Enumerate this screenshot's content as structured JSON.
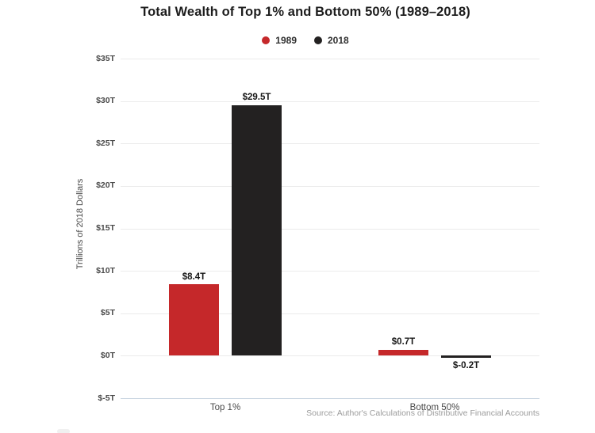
{
  "chart_data": {
    "type": "bar",
    "title": "Total Wealth of Top 1% and Bottom 50% (1989–2018)",
    "categories": [
      "Top 1%",
      "Bottom 50%"
    ],
    "series": [
      {
        "name": "1989",
        "color": "#c5282a",
        "values": [
          8.4,
          0.7
        ],
        "value_labels": [
          "$8.4T",
          "$0.7T"
        ]
      },
      {
        "name": "2018",
        "color": "#232121",
        "values": [
          29.5,
          -0.2
        ],
        "value_labels": [
          "$29.5T",
          "$-0.2T"
        ]
      }
    ],
    "xlabel": "",
    "ylabel": "Trillions of 2018 Dollars",
    "ylim": [
      -5,
      35
    ],
    "yticks": [
      {
        "value": 35,
        "label": "$35T"
      },
      {
        "value": 30,
        "label": "$30T"
      },
      {
        "value": 25,
        "label": "$25T"
      },
      {
        "value": 20,
        "label": "$20T"
      },
      {
        "value": 15,
        "label": "$15T"
      },
      {
        "value": 10,
        "label": "$10T"
      },
      {
        "value": 5,
        "label": "$5T"
      },
      {
        "value": 0,
        "label": "$0T"
      },
      {
        "value": -5,
        "label": "$-5T"
      }
    ],
    "grid": true,
    "legend_position": "top-center",
    "source": "Source: Author's Calculations of Distributive Financial Accounts"
  },
  "colors": {
    "series_1989": "#c5282a",
    "series_2018": "#232121",
    "gridline": "#ebebeb",
    "axis_baseline": "#c9d4e1",
    "title_text": "#1d1d1d",
    "tick_text": "#4a4a4a",
    "source_text": "#9c9c9c",
    "background": "#ffffff"
  }
}
